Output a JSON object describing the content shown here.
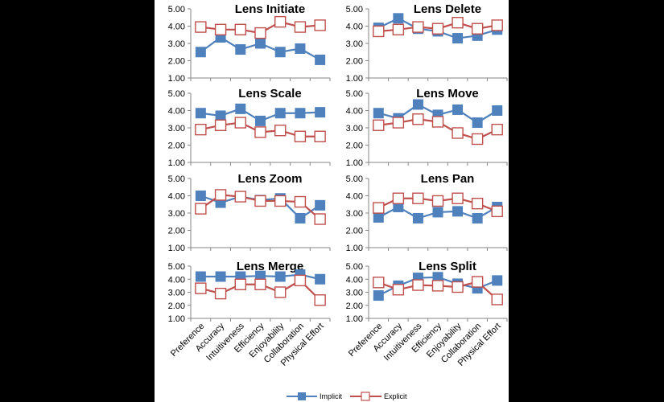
{
  "colors": {
    "implicit": "#4f81bd",
    "explicit": "#c0504d"
  },
  "categories": [
    "Preference",
    "Accuracy",
    "Intuitiveness",
    "Efficiency",
    "Enjoyability",
    "Collaboration",
    "Physical Effort"
  ],
  "legend": {
    "implicit": "Implicit",
    "explicit": "Explicit"
  },
  "chart_data": [
    {
      "type": "line",
      "title": "Lens Initiate",
      "ylim": [
        1,
        5
      ],
      "yticks": [
        "1.00",
        "2.00",
        "3.00",
        "4.00",
        "5.00"
      ],
      "series": [
        {
          "name": "Implicit",
          "values": [
            2.5,
            3.35,
            2.65,
            3.0,
            2.5,
            2.7,
            2.05
          ]
        },
        {
          "name": "Explicit",
          "values": [
            3.95,
            3.8,
            3.8,
            3.6,
            4.25,
            3.95,
            4.05
          ]
        }
      ]
    },
    {
      "type": "line",
      "title": "Lens Delete",
      "ylim": [
        1,
        5
      ],
      "yticks": [
        "1.00",
        "2.00",
        "3.00",
        "4.00",
        "5.00"
      ],
      "series": [
        {
          "name": "Implicit",
          "values": [
            3.9,
            4.45,
            3.85,
            3.7,
            3.3,
            3.45,
            3.8
          ]
        },
        {
          "name": "Explicit",
          "values": [
            3.7,
            3.8,
            3.95,
            3.85,
            4.2,
            3.85,
            4.05
          ]
        }
      ]
    },
    {
      "type": "line",
      "title": "Lens Scale",
      "ylim": [
        1,
        5
      ],
      "yticks": [
        "1.00",
        "2.00",
        "3.00",
        "4.00",
        "5.00"
      ],
      "series": [
        {
          "name": "Implicit",
          "values": [
            3.85,
            3.7,
            4.1,
            3.4,
            3.85,
            3.85,
            3.9
          ]
        },
        {
          "name": "Explicit",
          "values": [
            2.9,
            3.15,
            3.3,
            2.75,
            2.85,
            2.5,
            2.5
          ]
        }
      ]
    },
    {
      "type": "line",
      "title": "Lens Move",
      "ylim": [
        1,
        5
      ],
      "yticks": [
        "1.00",
        "2.00",
        "3.00",
        "4.00",
        "5.00"
      ],
      "series": [
        {
          "name": "Implicit",
          "values": [
            3.85,
            3.55,
            4.35,
            3.75,
            4.05,
            3.3,
            4.0
          ]
        },
        {
          "name": "Explicit",
          "values": [
            3.15,
            3.3,
            3.5,
            3.35,
            2.7,
            2.35,
            2.9
          ]
        }
      ]
    },
    {
      "type": "line",
      "title": "Lens Zoom",
      "ylim": [
        1,
        5
      ],
      "yticks": [
        "1.00",
        "2.00",
        "3.00",
        "4.00",
        "5.00"
      ],
      "series": [
        {
          "name": "Implicit",
          "values": [
            4.0,
            3.6,
            3.95,
            3.75,
            3.85,
            2.7,
            3.45
          ]
        },
        {
          "name": "Explicit",
          "values": [
            3.25,
            4.05,
            3.95,
            3.7,
            3.7,
            3.65,
            2.65
          ]
        }
      ]
    },
    {
      "type": "line",
      "title": "Lens Pan",
      "ylim": [
        1,
        5
      ],
      "yticks": [
        "1.00",
        "2.00",
        "3.00",
        "4.00",
        "5.00"
      ],
      "series": [
        {
          "name": "Implicit",
          "values": [
            2.75,
            3.35,
            2.7,
            3.05,
            3.1,
            2.7,
            3.35
          ]
        },
        {
          "name": "Explicit",
          "values": [
            3.3,
            3.85,
            3.85,
            3.7,
            3.85,
            3.55,
            3.1
          ]
        }
      ]
    },
    {
      "type": "line",
      "title": "Lens Merge",
      "ylim": [
        1,
        5
      ],
      "yticks": [
        "1.00",
        "2.00",
        "3.00",
        "4.00",
        "5.00"
      ],
      "series": [
        {
          "name": "Implicit",
          "values": [
            4.2,
            4.2,
            4.2,
            4.25,
            4.2,
            4.35,
            4.0
          ]
        },
        {
          "name": "Explicit",
          "values": [
            3.3,
            2.9,
            3.6,
            3.6,
            3.0,
            3.9,
            2.4
          ]
        }
      ]
    },
    {
      "type": "line",
      "title": "Lens Split",
      "ylim": [
        1,
        5
      ],
      "yticks": [
        "1.00",
        "2.00",
        "3.00",
        "4.00",
        "5.00"
      ],
      "series": [
        {
          "name": "Implicit",
          "values": [
            2.75,
            3.5,
            4.1,
            4.15,
            3.65,
            3.3,
            3.9
          ]
        },
        {
          "name": "Explicit",
          "values": [
            3.75,
            3.2,
            3.55,
            3.5,
            3.4,
            3.8,
            2.45
          ]
        }
      ]
    }
  ]
}
